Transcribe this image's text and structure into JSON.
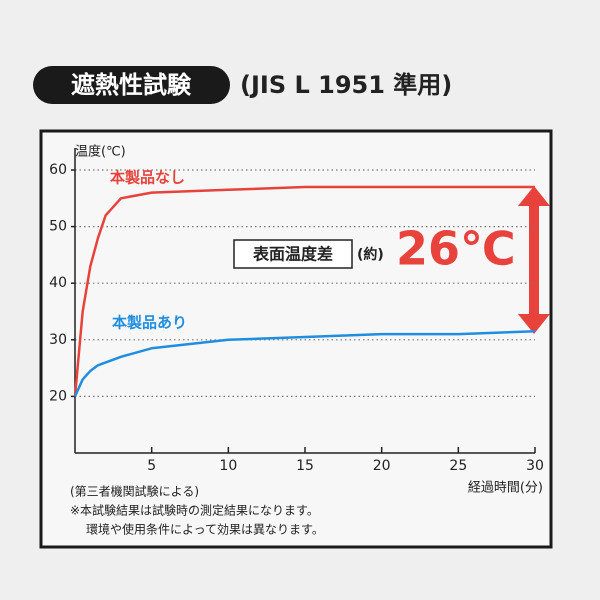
{
  "chart_data": {
    "type": "line",
    "title": "遮熱性試験",
    "subtitle": "(JIS L 1951 準用)",
    "y_label": "温度(℃)",
    "x_label": "経過時間(分)",
    "x": [
      0,
      0.5,
      1,
      1.5,
      2,
      3,
      5,
      10,
      15,
      20,
      25,
      30
    ],
    "series": [
      {
        "name": "本製品なし",
        "color": "#e8423c",
        "values": [
          20,
          35,
          43,
          48,
          52,
          55,
          56,
          56.5,
          57,
          57,
          57,
          57
        ]
      },
      {
        "name": "本製品あり",
        "color": "#1f8ee0",
        "values": [
          20,
          23,
          24.5,
          25.5,
          26,
          27,
          28.5,
          30,
          30.5,
          31,
          31,
          31.5
        ]
      }
    ],
    "xlim": [
      0,
      30
    ],
    "xticks": [
      5,
      10,
      15,
      20,
      25,
      30
    ],
    "ylim": [
      10,
      60
    ],
    "yticks": [
      20,
      30,
      40,
      50,
      60
    ],
    "grid": true,
    "annotation_box": "表面温度差",
    "annotation_approx": "(約)",
    "annotation_value": "26℃",
    "notes": [
      "(第三者機関試験による)",
      "※本試験結果は試験時の測定結果になります。",
      "環境や使用条件によって効果は異なります。"
    ]
  }
}
